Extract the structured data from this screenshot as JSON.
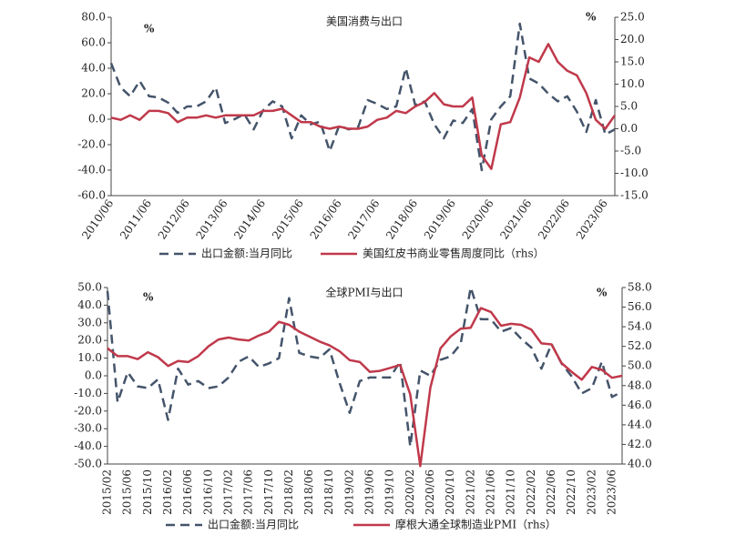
{
  "chart_data": [
    {
      "type": "line",
      "title": "美国消费与出口",
      "y_unit": "%",
      "y2_unit": "%",
      "categories": [
        "2010/06",
        null,
        null,
        null,
        "2011/06",
        null,
        null,
        null,
        "2012/06",
        null,
        null,
        null,
        "2013/06",
        null,
        null,
        null,
        "2014/06",
        null,
        null,
        null,
        "2015/06",
        null,
        null,
        null,
        "2016/06",
        null,
        null,
        null,
        "2017/06",
        null,
        null,
        null,
        "2018/06",
        null,
        null,
        null,
        "2019/06",
        null,
        null,
        null,
        "2020/06",
        null,
        null,
        null,
        "2021/06",
        null,
        null,
        null,
        "2022/06",
        null,
        null,
        null,
        "2023/06",
        null
      ],
      "series": [
        {
          "name": "出口金额:当月同比",
          "color": "#44546a",
          "dash": true,
          "axis": "y",
          "values": [
            44,
            25,
            18,
            30,
            18,
            17,
            13,
            5,
            10,
            10,
            14,
            25,
            -3,
            0,
            4,
            -8,
            7,
            14,
            10,
            -15,
            3,
            -4,
            -2,
            -25,
            -5,
            -8,
            -6,
            15,
            12,
            8,
            10,
            40,
            11,
            14,
            -4,
            -15,
            -1,
            -3,
            8,
            -40,
            0,
            10,
            18,
            75,
            32,
            28,
            20,
            14,
            18,
            6,
            -10,
            15,
            -12,
            -8
          ]
        },
        {
          "name": "美国红皮书商业零售周度同比（rhs）",
          "color": "#c0394b",
          "dash": false,
          "axis": "y2",
          "values": [
            2.5,
            2,
            3,
            2,
            4,
            4,
            3.5,
            1.5,
            2.5,
            2.5,
            3,
            2.5,
            3,
            3,
            3,
            3,
            4,
            4,
            4.5,
            3,
            1.5,
            1.5,
            0.5,
            0,
            0.5,
            0,
            0,
            0.5,
            2,
            2.5,
            4,
            3.5,
            5,
            6,
            8,
            5.5,
            5,
            5,
            7,
            -6,
            -9,
            1,
            1.5,
            7,
            16,
            15,
            19,
            15,
            13,
            12,
            8,
            2,
            0,
            3
          ]
        }
      ],
      "ylim": [
        -60,
        80
      ],
      "yticks": [
        {
          "value": -60,
          "label": "-60.0"
        },
        {
          "value": -40,
          "label": "-40.0"
        },
        {
          "value": -20,
          "label": "-20.0"
        },
        {
          "value": 0,
          "label": "0.0"
        },
        {
          "value": 20,
          "label": "20.0"
        },
        {
          "value": 40,
          "label": "40.0"
        },
        {
          "value": 60,
          "label": "60.0"
        },
        {
          "value": 80,
          "label": "80.0"
        }
      ],
      "y2lim": [
        -15,
        25
      ],
      "y2ticks": [
        {
          "value": -15,
          "label": "-15.0"
        },
        {
          "value": -10,
          "label": "-10.0"
        },
        {
          "value": -5,
          "label": "-5.0"
        },
        {
          "value": 0,
          "label": "0.0"
        },
        {
          "value": 5,
          "label": "5.0"
        },
        {
          "value": 10,
          "label": "10.0"
        },
        {
          "value": 15,
          "label": "15.0"
        },
        {
          "value": 20,
          "label": "20.0"
        },
        {
          "value": 25,
          "label": "25.0"
        }
      ]
    },
    {
      "type": "line",
      "title": "全球PMI与出口",
      "y_unit": "%",
      "y2_unit": "%",
      "categories": [
        "2015/02",
        null,
        "2015/06",
        null,
        "2015/10",
        null,
        "2016/02",
        null,
        "2016/06",
        null,
        "2016/10",
        null,
        "2017/02",
        null,
        "2017/06",
        null,
        "2017/10",
        null,
        "2018/02",
        null,
        "2018/06",
        null,
        "2018/10",
        null,
        "2019/02",
        null,
        "2019/06",
        null,
        "2019/10",
        null,
        "2020/02",
        null,
        "2020/06",
        null,
        "2020/10",
        null,
        "2021/02",
        null,
        "2021/06",
        null,
        "2021/10",
        null,
        "2022/02",
        null,
        "2022/06",
        null,
        "2022/10",
        null,
        "2023/02",
        null,
        "2023/06",
        null
      ],
      "series": [
        {
          "name": "出口金额:当月同比",
          "color": "#44546a",
          "dash": true,
          "axis": "y",
          "values": [
            48,
            -15,
            2,
            -6,
            -7,
            -2,
            -25,
            4,
            -5,
            -3,
            -7,
            -6,
            -1,
            8,
            11,
            5,
            7,
            10,
            44,
            13,
            11,
            10,
            15,
            -4,
            -21,
            -3,
            -1,
            -1,
            -1,
            8,
            -40,
            3,
            0,
            9,
            11,
            18,
            50,
            32,
            32,
            25,
            27,
            21,
            16,
            4,
            18,
            7,
            -0.3,
            -10,
            -7,
            8,
            -12,
            -9
          ]
        },
        {
          "name": "摩根大通全球制造业PMI（rhs）",
          "color": "#c0394b",
          "dash": false,
          "axis": "y2",
          "values": [
            51.8,
            51.0,
            51.0,
            50.7,
            51.4,
            50.9,
            50.0,
            50.5,
            50.4,
            51.0,
            52.0,
            52.7,
            52.9,
            52.7,
            52.6,
            53.1,
            53.5,
            54.5,
            54.2,
            53.5,
            53.0,
            52.5,
            52.1,
            51.5,
            50.6,
            50.4,
            49.4,
            49.5,
            49.8,
            50.1,
            47.1,
            39.8,
            47.8,
            51.8,
            53.0,
            53.8,
            53.9,
            55.9,
            55.5,
            54.1,
            54.3,
            54.2,
            53.7,
            52.3,
            52.2,
            50.3,
            49.4,
            48.6,
            49.9,
            49.6,
            48.8,
            49.0
          ]
        }
      ],
      "ylim": [
        -50,
        50
      ],
      "yticks": [
        {
          "value": -50,
          "label": "-50.0"
        },
        {
          "value": -40,
          "label": "-40.0"
        },
        {
          "value": -30,
          "label": "-30.0"
        },
        {
          "value": -20,
          "label": "-20.0"
        },
        {
          "value": -10,
          "label": "-10.0"
        },
        {
          "value": 0,
          "label": "0.0"
        },
        {
          "value": 10,
          "label": "10.0"
        },
        {
          "value": 20,
          "label": "20.0"
        },
        {
          "value": 30,
          "label": "30.0"
        },
        {
          "value": 40,
          "label": "40.0"
        },
        {
          "value": 50,
          "label": "50.0"
        }
      ],
      "y2lim": [
        40,
        58
      ],
      "y2ticks": [
        {
          "value": 40,
          "label": "40.0"
        },
        {
          "value": 42,
          "label": "42.0"
        },
        {
          "value": 44,
          "label": "44.0"
        },
        {
          "value": 46,
          "label": "46.0"
        },
        {
          "value": 48,
          "label": "48.0"
        },
        {
          "value": 50,
          "label": "50.0"
        },
        {
          "value": 52,
          "label": "52.0"
        },
        {
          "value": 54,
          "label": "54.0"
        },
        {
          "value": 56,
          "label": "56.0"
        },
        {
          "value": 58,
          "label": "58.0"
        }
      ]
    }
  ]
}
